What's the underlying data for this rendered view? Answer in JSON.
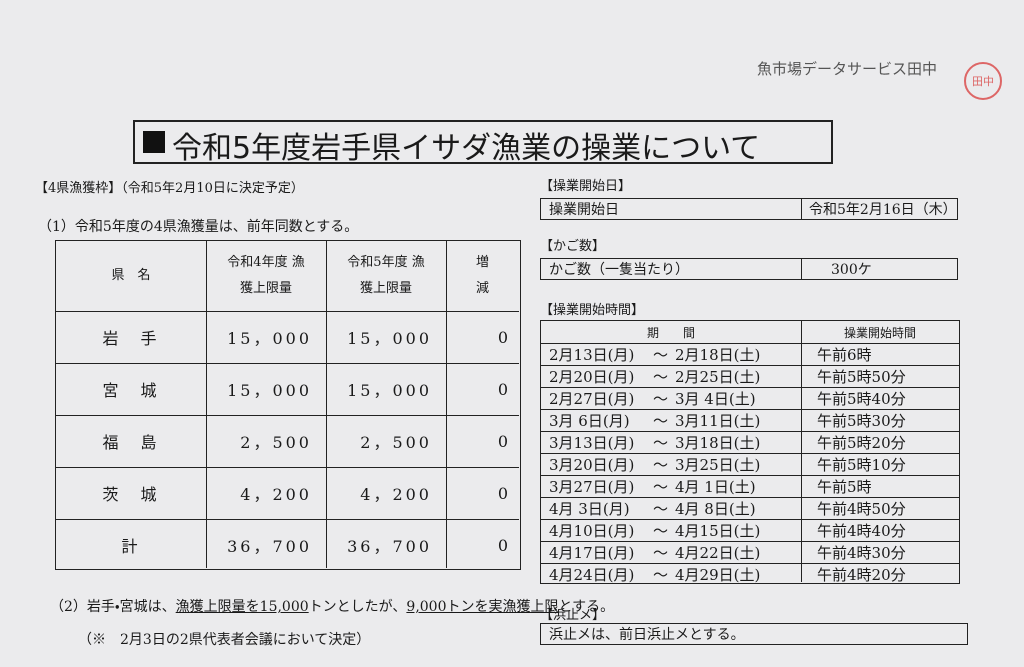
{
  "header": {
    "company": "魚市場データサービス田中",
    "stamp": "田中",
    "title": "令和5年度岩手県イサダ漁業の操業について"
  },
  "quota": {
    "heading": "【4県漁獲枠】（令和5年2月10日に決定予定）",
    "item1": "（1）令和5年度の4県漁獲量は、前年同数とする。",
    "table": {
      "columns": [
        "県　名",
        "令和4年度 漁獲上限量",
        "令和5年度 漁獲上限量",
        "増　減"
      ],
      "rows": [
        [
          "岩　手",
          "15，000",
          "15，000",
          "0"
        ],
        [
          "宮　城",
          "15，000",
          "15，000",
          "0"
        ],
        [
          "福　島",
          "2，500",
          "2，500",
          "0"
        ],
        [
          "茨　城",
          "4，200",
          "4，200",
          "0"
        ],
        [
          "計",
          "36，700",
          "36，700",
          "0"
        ]
      ]
    },
    "item2": [
      "（2）岩手・宮城は、",
      "漁獲上限量を15,000",
      "トンとしたが、",
      "9,000トンを実漁獲上限",
      "とする。"
    ],
    "note": "（※　2月3日の2県代表者会議において決定）"
  },
  "start_date": {
    "heading": "【操業開始日】",
    "label": "操業開始日",
    "value": "令和5年2月16日（木）"
  },
  "cages": {
    "heading": "【かご数】",
    "label": "かご数（一隻当たり）",
    "value": "300ケ"
  },
  "start_time": {
    "heading": "【操業開始時間】",
    "columns": [
      "期　　間",
      "操業開始時間"
    ],
    "rows": [
      [
        "2月13日(月)",
        "～",
        "2月18日(土)",
        "午前6時"
      ],
      [
        "2月20日(月)",
        "～",
        "2月25日(土)",
        "午前5時50分"
      ],
      [
        "2月27日(月)",
        "～",
        "3月 4日(土)",
        "午前5時40分"
      ],
      [
        "3月 6日(月)",
        "～",
        "3月11日(土)",
        "午前5時30分"
      ],
      [
        "3月13日(月)",
        "～",
        "3月18日(土)",
        "午前5時20分"
      ],
      [
        "3月20日(月)",
        "～",
        "3月25日(土)",
        "午前5時10分"
      ],
      [
        "3月27日(月)",
        "～",
        "4月 1日(土)",
        "午前5時"
      ],
      [
        "4月 3日(月)",
        "～",
        "4月 8日(土)",
        "午前4時50分"
      ],
      [
        "4月10日(月)",
        "～",
        "4月15日(土)",
        "午前4時40分"
      ],
      [
        "4月17日(月)",
        "～",
        "4月22日(土)",
        "午前4時30分"
      ],
      [
        "4月24日(月)",
        "～",
        "4月29日(土)",
        "午前4時20分"
      ]
    ]
  },
  "hamadome": {
    "heading": "【浜止メ】",
    "text": "浜止メは、前日浜止メとする。"
  }
}
